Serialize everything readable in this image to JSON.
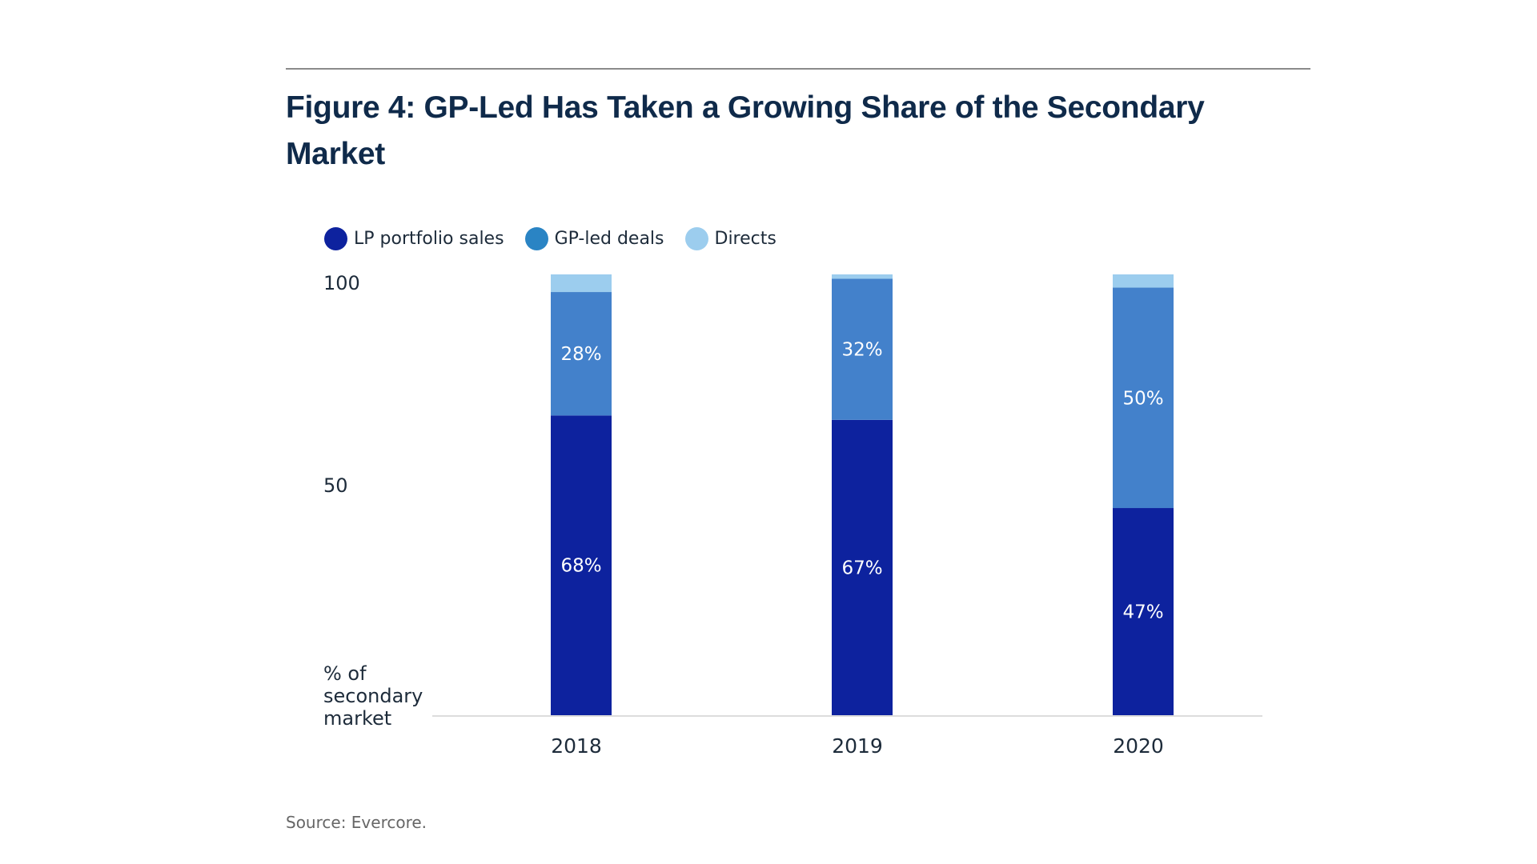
{
  "figure": {
    "title": "Figure 4: GP-Led Has Taken a Growing Share of the Secondary Market",
    "source": "Source: Evercore."
  },
  "chart_data": {
    "type": "bar",
    "stacked": true,
    "title": "Figure 4: GP-Led Has Taken a Growing Share of the Secondary Market",
    "xlabel": "",
    "ylabel": "% of secondary market",
    "ylabel_lines": [
      "% of",
      "secondary",
      "market"
    ],
    "ylim": [
      0,
      100
    ],
    "yticks": [
      50,
      100
    ],
    "ytick_labels": [
      "50",
      "100"
    ],
    "grid": false,
    "legend_position": "top-left",
    "categories": [
      "2018",
      "2019",
      "2020"
    ],
    "series": [
      {
        "name": "LP portfolio sales",
        "color": "#0d229e",
        "values": [
          68,
          67,
          47
        ],
        "labels": [
          "68%",
          "67%",
          "47%"
        ]
      },
      {
        "name": "GP-led deals",
        "color": "#4381cb",
        "values": [
          28,
          32,
          50
        ],
        "labels": [
          "28%",
          "32%",
          "50%"
        ]
      },
      {
        "name": "Directs",
        "color": "#9ccdee",
        "values": [
          4,
          1,
          3
        ],
        "labels": [
          "",
          "",
          ""
        ]
      }
    ],
    "legend": [
      {
        "label": "LP portfolio sales",
        "color": "#0d229e"
      },
      {
        "label": "GP-led deals",
        "color": "#2a84c4"
      },
      {
        "label": "Directs",
        "color": "#9ccdee"
      }
    ]
  }
}
